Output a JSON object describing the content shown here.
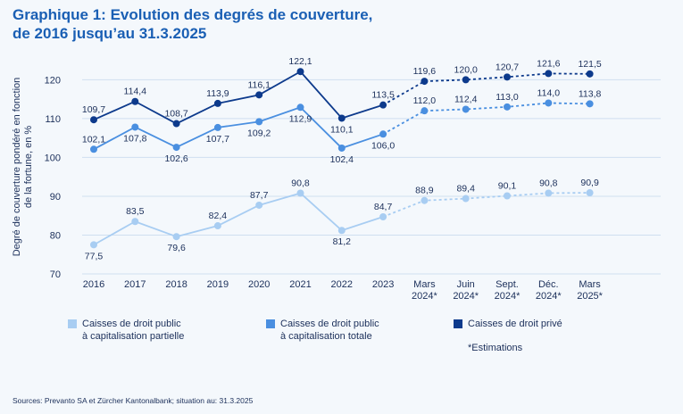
{
  "title": {
    "line1": "Graphique 1: Evolution des degrés de couverture,",
    "line2": "de 2016 jusqu’au 31.3.2025"
  },
  "colors": {
    "title": "#1a5fb4",
    "text": "#1b2f5a",
    "grid": "#cfdff0",
    "partial": "#a8cdf2",
    "total": "#4a8fe0",
    "private": "#0d3a8c"
  },
  "chart_data": {
    "type": "line",
    "ylabel_lines": [
      "Degré de couverture pondéré en fonction",
      "de la fortune, en %"
    ],
    "ylim": [
      70,
      125
    ],
    "yticks": [
      70,
      80,
      90,
      100,
      110,
      120
    ],
    "grid": true,
    "categories": [
      [
        "2016"
      ],
      [
        "2017"
      ],
      [
        "2018"
      ],
      [
        "2019"
      ],
      [
        "2020"
      ],
      [
        "2021"
      ],
      [
        "2022"
      ],
      [
        "2023"
      ],
      [
        "Mars",
        "2024*"
      ],
      [
        "Juin",
        "2024*"
      ],
      [
        "Sept.",
        "2024*"
      ],
      [
        "Déc.",
        "2024*"
      ],
      [
        "Mars",
        "2025*"
      ]
    ],
    "estimate_start_index": 8,
    "series": [
      {
        "name": "Caisses de droit public à capitalisation partielle",
        "color_key": "partial",
        "values": [
          77.5,
          83.5,
          79.6,
          82.4,
          87.7,
          90.8,
          81.2,
          84.7,
          88.9,
          89.4,
          90.1,
          90.8,
          90.9
        ],
        "labels": [
          "77,5",
          "83,5",
          "79,6",
          "82,4",
          "87,7",
          "90,8",
          "81,2",
          "84,7",
          "88,9",
          "89,4",
          "90,1",
          "90,8",
          "90,9"
        ],
        "label_pos": [
          "below",
          "above",
          "below",
          "above",
          "above",
          "above",
          "below",
          "above",
          "above",
          "above",
          "above",
          "above",
          "above"
        ]
      },
      {
        "name": "Caisses de droit public à capitalisation totale",
        "color_key": "total",
        "values": [
          102.1,
          107.8,
          102.6,
          107.7,
          109.2,
          112.9,
          102.4,
          106.0,
          112.0,
          112.4,
          113.0,
          114.0,
          113.8
        ],
        "labels": [
          "102,1",
          "107,8",
          "102,6",
          "107,7",
          "109,2",
          "112,9",
          "102,4",
          "106,0",
          "112,0",
          "112,4",
          "113,0",
          "114,0",
          "113,8"
        ],
        "label_pos": [
          "above",
          "below",
          "below",
          "below",
          "below",
          "below",
          "below",
          "below",
          "above",
          "above",
          "above",
          "above",
          "above"
        ]
      },
      {
        "name": "Caisses de droit privé",
        "color_key": "private",
        "values": [
          109.7,
          114.4,
          108.7,
          113.9,
          116.1,
          122.1,
          110.1,
          113.5,
          119.6,
          120.0,
          120.7,
          121.6,
          121.5
        ],
        "labels": [
          "109,7",
          "114,4",
          "108,7",
          "113,9",
          "116,1",
          "122,1",
          "110,1",
          "113,5",
          "119,6",
          "120,0",
          "120,7",
          "121,6",
          "121,5"
        ],
        "label_pos": [
          "above",
          "above",
          "above",
          "above",
          "above",
          "above",
          "below",
          "above",
          "above",
          "above",
          "above",
          "above",
          "above"
        ]
      }
    ]
  },
  "legend": {
    "partial": [
      "Caisses de droit public",
      "à capitalisation partielle"
    ],
    "total": [
      "Caisses de droit public",
      "à capitalisation totale"
    ],
    "private": [
      "Caisses de droit privé"
    ]
  },
  "note": "*Estimations",
  "source": "Sources: Prevanto SA et Zürcher Kantonalbank; situation au: 31.3.2025"
}
